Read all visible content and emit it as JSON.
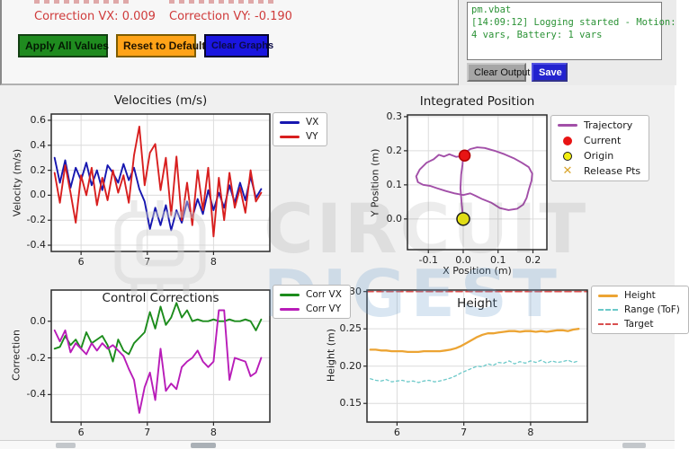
{
  "controls": {
    "correction_vx": "Correction VX: 0.009",
    "correction_vy": "Correction VY: -0.190",
    "apply_button": "Apply All Values",
    "reset_button": "Reset to Default",
    "clear_graphs_button": "Clear Graphs"
  },
  "log": {
    "lines": [
      "pm.vbat",
      "[14:09:12] Logging started - Motion:",
      "4 vars, Battery: 1 vars"
    ],
    "clear_output_button": "Clear Output",
    "save_button": "Save"
  },
  "watermark": {
    "line1": "CIRCUIT",
    "line2": "DIGEST"
  },
  "colors": {
    "correction_text": "#cf3b3b",
    "apply_button_bg": "#1f8b1f",
    "reset_button_bg": "#ffa318",
    "clear_graphs_button_bg": "#1a16e0",
    "save_button_bg": "#2323cf",
    "clear_output_button_bg": "#a6a6a6",
    "log_text": "#2a9235",
    "figure_bg": "#f0f0f0"
  },
  "chart_data": [
    {
      "id": "velocities",
      "type": "line",
      "title": "Velocities (m/s)",
      "ylabel": "Velocity (m/s)",
      "xlim": [
        5.55,
        8.85
      ],
      "ylim": [
        -0.45,
        0.65
      ],
      "xticks": [
        6,
        7,
        8
      ],
      "xtick_labels": [
        "6",
        "7",
        "8"
      ],
      "yticks": [
        -0.4,
        -0.2,
        0.0,
        0.2,
        0.4,
        0.6
      ],
      "ytick_labels": [
        "-0.4",
        "-0.2",
        "0.0",
        "0.2",
        "0.4",
        "0.6"
      ],
      "grid": true,
      "legend_position": "outside-right",
      "x": [
        5.6,
        5.68,
        5.76,
        5.84,
        5.92,
        6.0,
        6.08,
        6.16,
        6.24,
        6.32,
        6.4,
        6.48,
        6.56,
        6.64,
        6.72,
        6.8,
        6.88,
        6.96,
        7.04,
        7.12,
        7.2,
        7.28,
        7.36,
        7.44,
        7.52,
        7.6,
        7.68,
        7.76,
        7.84,
        7.92,
        8.0,
        8.08,
        8.16,
        8.24,
        8.32,
        8.4,
        8.48,
        8.56,
        8.64,
        8.72
      ],
      "series": [
        {
          "name": "VX",
          "color": "#1717b0",
          "width": 1.9,
          "values": [
            0.3,
            0.1,
            0.28,
            0.06,
            0.22,
            0.12,
            0.26,
            0.08,
            0.2,
            0.04,
            0.24,
            0.18,
            0.1,
            0.25,
            0.12,
            0.22,
            0.05,
            -0.05,
            -0.27,
            -0.1,
            -0.24,
            -0.08,
            -0.28,
            -0.12,
            -0.22,
            -0.05,
            -0.18,
            -0.03,
            -0.15,
            0.04,
            -0.12,
            0.02,
            -0.1,
            0.08,
            -0.06,
            0.1,
            -0.04,
            0.15,
            -0.02,
            0.05
          ]
        },
        {
          "name": "VY",
          "color": "#d81f1f",
          "width": 1.9,
          "values": [
            0.18,
            -0.06,
            0.24,
            0.02,
            -0.22,
            0.16,
            0.0,
            0.22,
            -0.08,
            0.14,
            -0.04,
            0.2,
            0.02,
            0.16,
            -0.06,
            0.32,
            0.55,
            0.08,
            0.34,
            0.41,
            0.04,
            0.3,
            -0.16,
            0.31,
            -0.2,
            0.1,
            -0.24,
            0.2,
            -0.12,
            0.22,
            -0.33,
            0.14,
            -0.2,
            0.18,
            -0.1,
            0.06,
            -0.14,
            0.2,
            -0.05,
            0.02
          ]
        }
      ],
      "legend": [
        {
          "label": "VX",
          "symbol": "line",
          "color": "#1717b0"
        },
        {
          "label": "VY",
          "symbol": "line",
          "color": "#d81f1f"
        }
      ]
    },
    {
      "id": "position",
      "type": "trajectory",
      "title": "Integrated Position",
      "xlabel": "X Position (m)",
      "ylabel": "Y Position (m)",
      "xlim": [
        -0.16,
        0.24
      ],
      "ylim": [
        -0.09,
        0.305
      ],
      "xticks": [
        -0.1,
        0.0,
        0.1,
        0.2
      ],
      "xtick_labels": [
        "-0.1",
        "0.0",
        "0.1",
        "0.2"
      ],
      "yticks": [
        0.0,
        0.1,
        0.2,
        0.3
      ],
      "ytick_labels": [
        "0.0",
        "0.1",
        "0.2",
        "0.3"
      ],
      "grid": true,
      "legend_position": "outside-right",
      "trajectory": {
        "color": "#a24fa8",
        "points": [
          [
            0.0,
            0.0
          ],
          [
            -0.004,
            0.04
          ],
          [
            -0.008,
            0.09
          ],
          [
            -0.006,
            0.13
          ],
          [
            -0.002,
            0.16
          ],
          [
            0.0,
            0.185
          ],
          [
            -0.02,
            0.182
          ],
          [
            -0.04,
            0.19
          ],
          [
            -0.055,
            0.183
          ],
          [
            -0.07,
            0.188
          ],
          [
            -0.085,
            0.175
          ],
          [
            -0.105,
            0.165
          ],
          [
            -0.125,
            0.145
          ],
          [
            -0.135,
            0.125
          ],
          [
            -0.13,
            0.108
          ],
          [
            -0.115,
            0.1
          ],
          [
            -0.095,
            0.097
          ],
          [
            -0.075,
            0.09
          ],
          [
            -0.05,
            0.082
          ],
          [
            -0.025,
            0.075
          ],
          [
            0.0,
            0.07
          ],
          [
            0.02,
            0.075
          ],
          [
            0.035,
            0.068
          ],
          [
            0.055,
            0.058
          ],
          [
            0.08,
            0.048
          ],
          [
            0.105,
            0.032
          ],
          [
            0.13,
            0.026
          ],
          [
            0.155,
            0.03
          ],
          [
            0.172,
            0.042
          ],
          [
            0.182,
            0.062
          ],
          [
            0.188,
            0.085
          ],
          [
            0.196,
            0.112
          ],
          [
            0.198,
            0.133
          ],
          [
            0.188,
            0.152
          ],
          [
            0.168,
            0.165
          ],
          [
            0.145,
            0.178
          ],
          [
            0.118,
            0.19
          ],
          [
            0.09,
            0.2
          ],
          [
            0.062,
            0.208
          ],
          [
            0.04,
            0.21
          ],
          [
            0.02,
            0.205
          ],
          [
            0.006,
            0.195
          ],
          [
            0.0,
            0.187
          ]
        ]
      },
      "markers": [
        {
          "label": "Current",
          "color": "#e81414",
          "edge": "#b00000",
          "x": 0.004,
          "y": 0.186,
          "r": 6
        },
        {
          "label": "Origin",
          "color": "#f2ee10",
          "edge": "#1a1a1a",
          "x": 0.0,
          "y": 0.0,
          "r": 7
        }
      ],
      "legend": [
        {
          "label": "Trajectory",
          "symbol": "line",
          "color": "#a24fa8"
        },
        {
          "label": "Current",
          "symbol": "dot",
          "color": "#e81414"
        },
        {
          "label": "Origin",
          "symbol": "ring",
          "color": "#f2ee10",
          "edge": "#1a1a1a"
        },
        {
          "label": "Release Pts",
          "symbol": "x",
          "color": "#d9a42a"
        }
      ]
    },
    {
      "id": "corrections",
      "type": "line",
      "title": "Control Corrections",
      "ylabel": "Correction",
      "xlim": [
        5.55,
        8.85
      ],
      "ylim": [
        -0.55,
        0.17
      ],
      "xticks": [
        6,
        7,
        8
      ],
      "xtick_labels": [
        "6",
        "7",
        "8"
      ],
      "yticks": [
        0.0,
        -0.2,
        -0.4
      ],
      "ytick_labels": [
        "0.0",
        "-0.2",
        "-0.4"
      ],
      "grid": true,
      "legend_position": "outside-right",
      "x": [
        5.6,
        5.68,
        5.76,
        5.84,
        5.92,
        6.0,
        6.08,
        6.16,
        6.24,
        6.32,
        6.4,
        6.48,
        6.56,
        6.64,
        6.72,
        6.8,
        6.88,
        6.96,
        7.04,
        7.12,
        7.2,
        7.28,
        7.36,
        7.44,
        7.52,
        7.6,
        7.68,
        7.76,
        7.84,
        7.92,
        8.0,
        8.08,
        8.16,
        8.24,
        8.32,
        8.4,
        8.48,
        8.56,
        8.64,
        8.72
      ],
      "series": [
        {
          "name": "Corr VX",
          "color": "#1c8c1c",
          "width": 1.9,
          "values": [
            -0.15,
            -0.14,
            -0.08,
            -0.13,
            -0.1,
            -0.15,
            -0.06,
            -0.12,
            -0.1,
            -0.08,
            -0.13,
            -0.22,
            -0.1,
            -0.16,
            -0.18,
            -0.12,
            -0.09,
            -0.06,
            0.05,
            -0.04,
            0.08,
            -0.02,
            0.02,
            0.1,
            0.02,
            0.06,
            0.0,
            0.01,
            0.0,
            0.0,
            0.01,
            0.0,
            0.0,
            0.01,
            0.0,
            0.0,
            0.01,
            0.0,
            -0.05,
            0.01
          ]
        },
        {
          "name": "Corr VY",
          "color": "#b81cb8",
          "width": 1.9,
          "values": [
            -0.05,
            -0.11,
            -0.05,
            -0.17,
            -0.12,
            -0.15,
            -0.18,
            -0.12,
            -0.16,
            -0.12,
            -0.15,
            -0.13,
            -0.16,
            -0.19,
            -0.26,
            -0.32,
            -0.5,
            -0.36,
            -0.28,
            -0.43,
            -0.15,
            -0.38,
            -0.34,
            -0.37,
            -0.25,
            -0.22,
            -0.2,
            -0.16,
            -0.22,
            -0.25,
            -0.22,
            0.06,
            0.06,
            -0.32,
            -0.2,
            -0.21,
            -0.22,
            -0.3,
            -0.28,
            -0.2
          ]
        }
      ],
      "legend": [
        {
          "label": "Corr VX",
          "symbol": "line",
          "color": "#1c8c1c"
        },
        {
          "label": "Corr VY",
          "symbol": "line",
          "color": "#b81cb8"
        }
      ]
    },
    {
      "id": "height",
      "type": "line",
      "title": "Height",
      "ylabel": "Height (m)",
      "xlim": [
        5.55,
        8.85
      ],
      "ylim": [
        0.125,
        0.302
      ],
      "xticks": [
        6,
        7,
        8
      ],
      "xtick_labels": [
        "6",
        "7",
        "8"
      ],
      "yticks": [
        0.15,
        0.2,
        0.25,
        0.3
      ],
      "ytick_labels": [
        "0.15",
        "0.20",
        "0.25",
        "0.30"
      ],
      "grid": true,
      "legend_position": "outside-right",
      "x": [
        5.6,
        5.68,
        5.76,
        5.84,
        5.92,
        6.0,
        6.08,
        6.16,
        6.24,
        6.32,
        6.4,
        6.48,
        6.56,
        6.64,
        6.72,
        6.8,
        6.88,
        6.96,
        7.04,
        7.12,
        7.2,
        7.28,
        7.36,
        7.44,
        7.52,
        7.6,
        7.68,
        7.76,
        7.84,
        7.92,
        8.0,
        8.08,
        8.16,
        8.24,
        8.32,
        8.4,
        8.48,
        8.56,
        8.64,
        8.72
      ],
      "series": [
        {
          "name": "Height",
          "color": "#eca433",
          "width": 2.3,
          "values": [
            0.222,
            0.222,
            0.221,
            0.221,
            0.22,
            0.22,
            0.22,
            0.219,
            0.219,
            0.219,
            0.22,
            0.22,
            0.22,
            0.22,
            0.221,
            0.222,
            0.224,
            0.227,
            0.231,
            0.235,
            0.239,
            0.242,
            0.244,
            0.244,
            0.245,
            0.246,
            0.247,
            0.247,
            0.246,
            0.247,
            0.247,
            0.246,
            0.247,
            0.246,
            0.247,
            0.248,
            0.248,
            0.247,
            0.249,
            0.25
          ]
        },
        {
          "name": "Range (ToF)",
          "color": "#6cc9c9",
          "width": 1.3,
          "dash": "3 3",
          "values": [
            0.183,
            0.181,
            0.18,
            0.182,
            0.179,
            0.18,
            0.181,
            0.179,
            0.18,
            0.178,
            0.18,
            0.181,
            0.179,
            0.18,
            0.182,
            0.184,
            0.187,
            0.191,
            0.194,
            0.197,
            0.2,
            0.199,
            0.203,
            0.201,
            0.205,
            0.204,
            0.207,
            0.203,
            0.206,
            0.204,
            0.207,
            0.205,
            0.208,
            0.204,
            0.207,
            0.205,
            0.206,
            0.208,
            0.205,
            0.207
          ]
        },
        {
          "name": "Target",
          "color": "#d94f4f",
          "width": 1.6,
          "dash": "7 4",
          "const": 0.3
        }
      ],
      "legend": [
        {
          "label": "Height",
          "symbol": "line",
          "color": "#eca433"
        },
        {
          "label": "Range (ToF)",
          "symbol": "dash",
          "color": "#6cc9c9"
        },
        {
          "label": "Target",
          "symbol": "dash",
          "color": "#d94f4f"
        }
      ]
    }
  ]
}
